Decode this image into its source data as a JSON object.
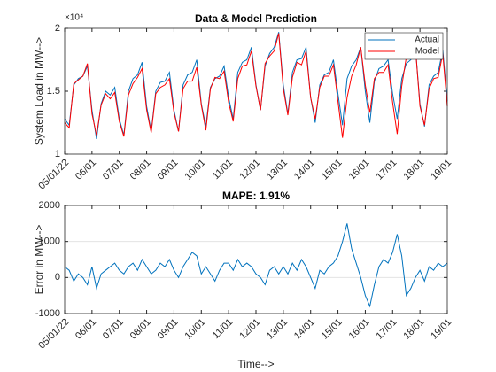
{
  "chart_data": [
    {
      "type": "line",
      "title": "Data & Model Prediction",
      "ylabel": "System Load in MW-->",
      "y_multiplier": "×10⁴",
      "x": [
        0,
        4,
        8,
        12,
        16,
        20,
        24,
        28,
        32,
        36,
        40,
        44,
        48,
        52,
        56,
        60,
        64,
        68,
        72,
        76,
        80,
        84,
        88,
        92,
        96,
        100,
        104,
        108,
        112,
        116,
        120,
        124,
        128,
        132,
        136,
        140,
        144,
        148,
        152,
        156,
        160,
        164,
        168,
        172,
        176,
        180,
        184,
        188,
        192,
        196,
        200,
        204,
        208,
        212,
        216,
        220,
        224,
        228,
        232,
        236,
        240,
        244,
        248,
        252,
        256,
        260,
        264,
        268,
        272,
        276,
        280,
        284,
        288,
        292,
        296,
        300,
        304,
        308,
        312,
        316,
        320,
        324,
        328,
        332,
        336
      ],
      "series": [
        {
          "name": "Actual",
          "color": "#0072bd",
          "values": [
            12800,
            12300,
            15500,
            16000,
            16200,
            17000,
            13500,
            11200,
            14000,
            15000,
            14700,
            15300,
            12800,
            11500,
            15000,
            16000,
            16300,
            17300,
            13800,
            11800,
            15000,
            15700,
            15800,
            16500,
            13500,
            11800,
            15500,
            16300,
            16500,
            17500,
            14000,
            12200,
            15300,
            16000,
            16200,
            17000,
            14500,
            12800,
            16500,
            17300,
            17500,
            18500,
            15500,
            13500,
            17000,
            18000,
            18500,
            19700,
            15500,
            13200,
            16500,
            17500,
            17600,
            18500,
            14500,
            12500,
            15500,
            16300,
            16500,
            17500,
            14800,
            12300,
            16000,
            17000,
            17500,
            18500,
            15000,
            12500,
            15800,
            16800,
            17000,
            17500,
            14800,
            12800,
            16000,
            17200,
            17500,
            18500,
            14000,
            12200,
            15500,
            16200,
            16500,
            18300,
            14200
          ]
        },
        {
          "name": "Model",
          "color": "#ff0000",
          "values": [
            12500,
            12100,
            15600,
            15900,
            16200,
            17200,
            13200,
            11500,
            13900,
            14800,
            14400,
            14900,
            12600,
            11400,
            14700,
            15600,
            16100,
            16800,
            13500,
            11700,
            14800,
            15300,
            15500,
            16000,
            13300,
            11800,
            15200,
            15800,
            15800,
            16900,
            13900,
            11900,
            15200,
            16100,
            16000,
            16600,
            14100,
            12600,
            16000,
            17000,
            17100,
            18200,
            15400,
            13500,
            17200,
            17800,
            18200,
            19600,
            15200,
            13100,
            16100,
            17300,
            17100,
            18200,
            14500,
            12800,
            15300,
            16200,
            16200,
            17100,
            14200,
            11300,
            14500,
            16200,
            17100,
            18500,
            15500,
            13300,
            16000,
            16500,
            16500,
            17100,
            14100,
            11600,
            15400,
            17700,
            17800,
            18500,
            13800,
            12300,
            15200,
            16000,
            16100,
            18000,
            13800
          ]
        }
      ],
      "xlim": [
        0,
        336
      ],
      "xticks": [
        {
          "value": 0,
          "label": "05/01/22"
        },
        {
          "value": 24,
          "label": "06/01"
        },
        {
          "value": 48,
          "label": "07/01"
        },
        {
          "value": 72,
          "label": "08/01"
        },
        {
          "value": 96,
          "label": "09/01"
        },
        {
          "value": 120,
          "label": "10/01"
        },
        {
          "value": 144,
          "label": "11/01"
        },
        {
          "value": 168,
          "label": "12/01"
        },
        {
          "value": 192,
          "label": "13/01"
        },
        {
          "value": 216,
          "label": "14/01"
        },
        {
          "value": 240,
          "label": "15/01"
        },
        {
          "value": 264,
          "label": "16/01"
        },
        {
          "value": 288,
          "label": "17/01"
        },
        {
          "value": 312,
          "label": "18/01"
        },
        {
          "value": 336,
          "label": "19/01"
        }
      ],
      "ylim": [
        10000,
        20000
      ],
      "yticks": [
        {
          "value": 10000,
          "label": "1"
        },
        {
          "value": 15000,
          "label": "1.5"
        },
        {
          "value": 20000,
          "label": "2"
        }
      ],
      "grid": false,
      "legend": "northeast"
    },
    {
      "type": "line",
      "title": "MAPE: 1.91%",
      "ylabel": "Error in MW-->",
      "xlabel": "Time-->",
      "x": [
        0,
        4,
        8,
        12,
        16,
        20,
        24,
        28,
        32,
        36,
        40,
        44,
        48,
        52,
        56,
        60,
        64,
        68,
        72,
        76,
        80,
        84,
        88,
        92,
        96,
        100,
        104,
        108,
        112,
        116,
        120,
        124,
        128,
        132,
        136,
        140,
        144,
        148,
        152,
        156,
        160,
        164,
        168,
        172,
        176,
        180,
        184,
        188,
        192,
        196,
        200,
        204,
        208,
        212,
        216,
        220,
        224,
        228,
        232,
        236,
        240,
        244,
        248,
        252,
        256,
        260,
        264,
        268,
        272,
        276,
        280,
        284,
        288,
        292,
        296,
        300,
        304,
        308,
        312,
        316,
        320,
        324,
        328,
        332,
        336
      ],
      "series": [
        {
          "color": "#0072bd",
          "values": [
            300,
            200,
            -100,
            100,
            0,
            -200,
            300,
            -300,
            100,
            200,
            300,
            400,
            200,
            100,
            300,
            400,
            200,
            500,
            300,
            100,
            200,
            400,
            300,
            500,
            200,
            0,
            300,
            500,
            700,
            600,
            100,
            300,
            100,
            -100,
            200,
            400,
            400,
            200,
            500,
            300,
            400,
            300,
            100,
            0,
            -200,
            200,
            300,
            100,
            300,
            100,
            400,
            200,
            500,
            300,
            0,
            -300,
            200,
            100,
            300,
            400,
            600,
            1000,
            1500,
            800,
            400,
            0,
            -500,
            -800,
            -200,
            300,
            500,
            400,
            700,
            1200,
            600,
            -500,
            -300,
            0,
            200,
            -100,
            300,
            200,
            400,
            300,
            400
          ]
        }
      ],
      "xlim": [
        0,
        336
      ],
      "xticks": [
        {
          "value": 0,
          "label": "05/01/22"
        },
        {
          "value": 24,
          "label": "06/01"
        },
        {
          "value": 48,
          "label": "07/01"
        },
        {
          "value": 72,
          "label": "08/01"
        },
        {
          "value": 96,
          "label": "09/01"
        },
        {
          "value": 120,
          "label": "10/01"
        },
        {
          "value": 144,
          "label": "11/01"
        },
        {
          "value": 168,
          "label": "12/01"
        },
        {
          "value": 192,
          "label": "13/01"
        },
        {
          "value": 216,
          "label": "14/01"
        },
        {
          "value": 240,
          "label": "15/01"
        },
        {
          "value": 264,
          "label": "16/01"
        },
        {
          "value": 288,
          "label": "17/01"
        },
        {
          "value": 312,
          "label": "18/01"
        },
        {
          "value": 336,
          "label": "19/01"
        }
      ],
      "ylim": [
        -1000,
        2000
      ],
      "yticks": [
        -1000,
        0,
        1000,
        2000
      ],
      "grid": true
    }
  ]
}
